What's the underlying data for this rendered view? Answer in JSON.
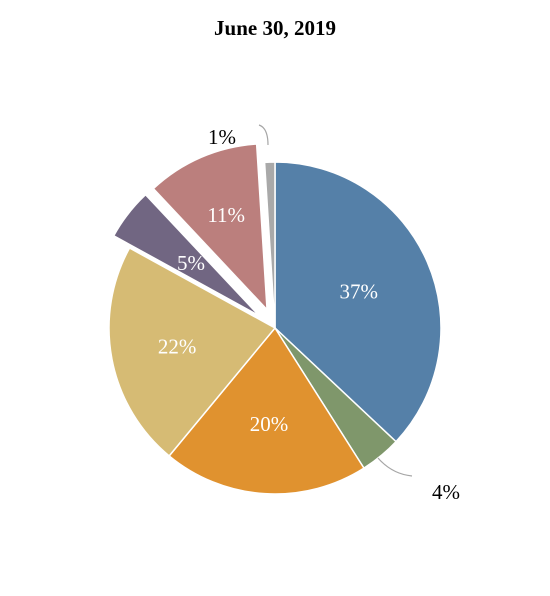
{
  "chart_data": {
    "type": "pie",
    "title": "June 30, 2019",
    "slices": [
      {
        "value": 37,
        "label": "37%",
        "color": "#5580a8"
      },
      {
        "value": 4,
        "label": "4%",
        "color": "#7f976b"
      },
      {
        "value": 20,
        "label": "20%",
        "color": "#e0922f"
      },
      {
        "value": 22,
        "label": "22%",
        "color": "#d6bb74"
      },
      {
        "value": 5,
        "label": "5%",
        "color": "#716682"
      },
      {
        "value": 11,
        "label": "11%",
        "color": "#bb7f7d"
      },
      {
        "value": 1,
        "label": "1%",
        "color": "#a9a9a9"
      }
    ],
    "exploded": [
      "5%",
      "11%"
    ],
    "start": "12 o'clock",
    "direction": "clockwise"
  }
}
